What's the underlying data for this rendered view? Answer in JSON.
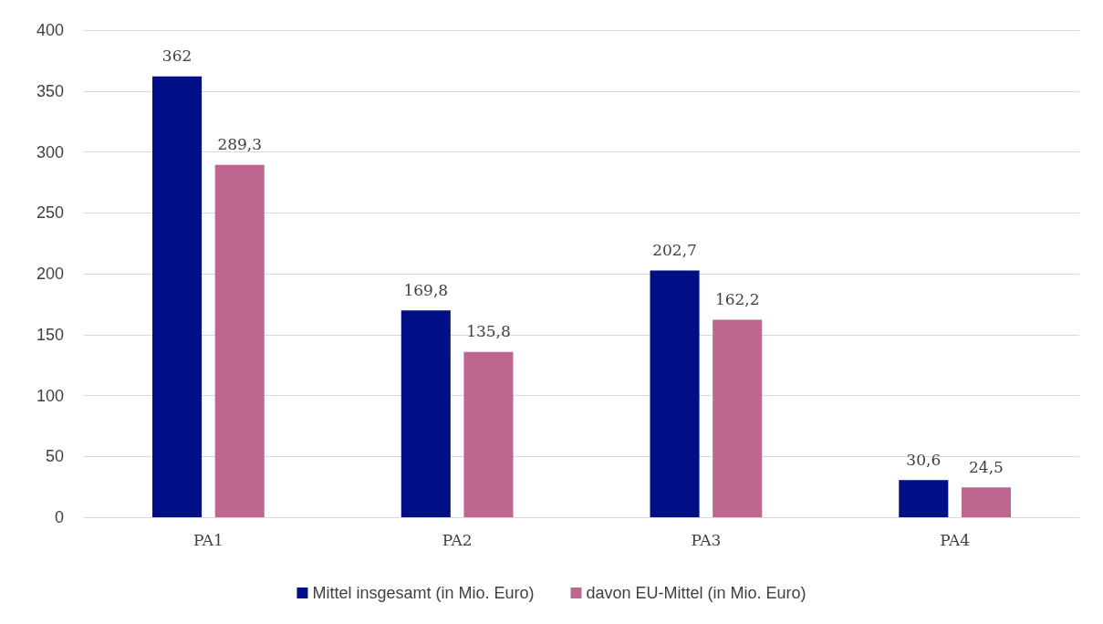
{
  "chart_data": {
    "type": "bar",
    "categories": [
      "PA1",
      "PA2",
      "PA3",
      "PA4"
    ],
    "series": [
      {
        "name": "Mittel insgesamt (in Mio. Euro)",
        "color": "#000f85",
        "values": [
          362,
          169.8,
          202.7,
          30.6
        ],
        "value_labels": [
          "362",
          "169,8",
          "202,7",
          "30,6"
        ]
      },
      {
        "name": "davon EU-Mittel (in Mio. Euro)",
        "color": "#be6690",
        "values": [
          289.3,
          135.8,
          162.2,
          24.5
        ],
        "value_labels": [
          "289,3",
          "135,8",
          "162,2",
          "24,5"
        ]
      }
    ],
    "ylim": [
      0,
      400
    ],
    "yticks": [
      0,
      50,
      100,
      150,
      200,
      250,
      300,
      350,
      400
    ],
    "grid": "y",
    "legend": "bottom"
  }
}
